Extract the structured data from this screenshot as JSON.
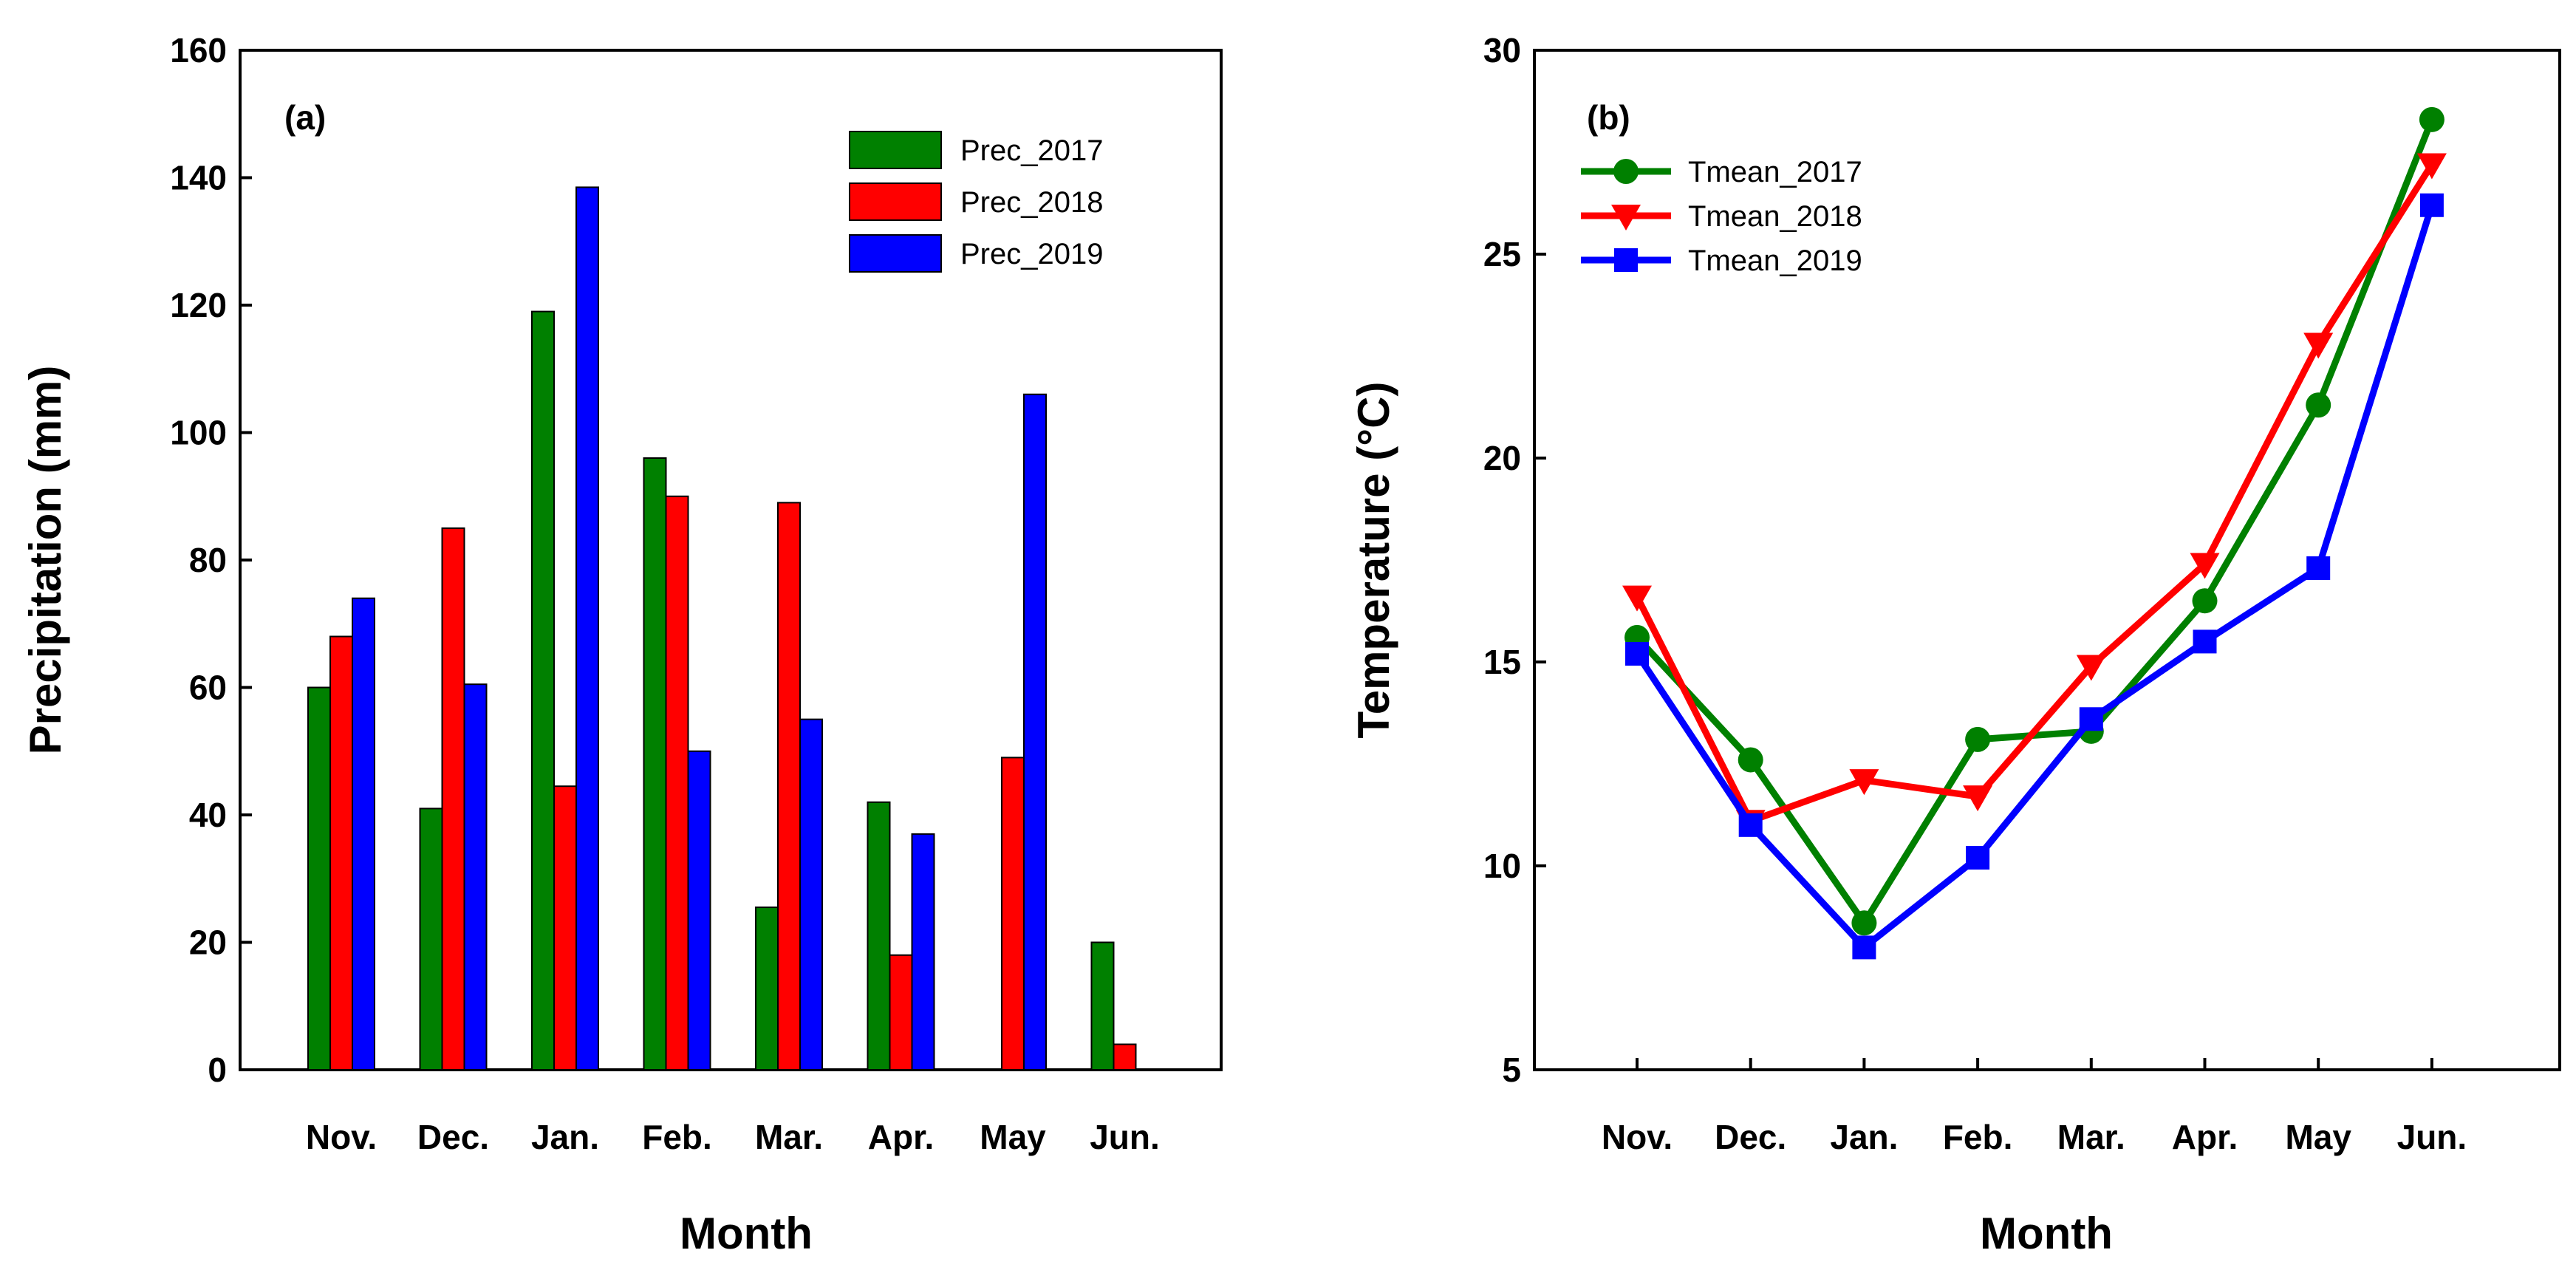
{
  "chart_data": [
    {
      "type": "bar",
      "panel_label": "(a)",
      "xlabel": "Month",
      "ylabel": "Precipitation (mm)",
      "ylim": [
        0,
        160
      ],
      "yticks": [
        "0",
        "20",
        "40",
        "60",
        "80",
        "100",
        "120",
        "140",
        "160"
      ],
      "categories": [
        "Nov.",
        "Dec.",
        "Jan.",
        "Feb.",
        "Mar.",
        "Apr.",
        "May",
        "Jun."
      ],
      "legend_position": "top-right",
      "series": [
        {
          "name": "Prec_2017",
          "color": "#008000",
          "values": [
            60,
            41,
            119,
            96,
            25.5,
            42,
            0,
            20
          ]
        },
        {
          "name": "Prec_2018",
          "color": "#ff0000",
          "values": [
            68,
            85,
            44.5,
            90,
            89,
            18,
            49,
            4
          ]
        },
        {
          "name": "Prec_2019",
          "color": "#0000ff",
          "values": [
            74,
            60.5,
            138.5,
            50,
            55,
            37,
            106,
            0
          ]
        }
      ]
    },
    {
      "type": "line",
      "panel_label": "(b)",
      "xlabel": "Month",
      "ylabel": "Temperature (°C)",
      "ylim": [
        5,
        30
      ],
      "yticks": [
        "5",
        "10",
        "15",
        "20",
        "25",
        "30"
      ],
      "categories": [
        "Nov.",
        "Dec.",
        "Jan.",
        "Feb.",
        "Mar.",
        "Apr.",
        "May",
        "Jun."
      ],
      "legend_position": "top-left",
      "series": [
        {
          "name": "Tmean_2017",
          "color": "#008000",
          "marker": "circle",
          "values": [
            15.6,
            12.6,
            8.6,
            13.1,
            13.3,
            16.5,
            21.3,
            28.3
          ]
        },
        {
          "name": "Tmean_2018",
          "color": "#ff0000",
          "marker": "triangle-down",
          "values": [
            16.6,
            11.1,
            12.1,
            11.7,
            14.9,
            17.4,
            22.8,
            27.2
          ]
        },
        {
          "name": "Tmean_2019",
          "color": "#0000ff",
          "marker": "square",
          "values": [
            15.2,
            11.0,
            8.0,
            10.2,
            13.6,
            15.5,
            17.3,
            26.2
          ]
        }
      ]
    }
  ]
}
